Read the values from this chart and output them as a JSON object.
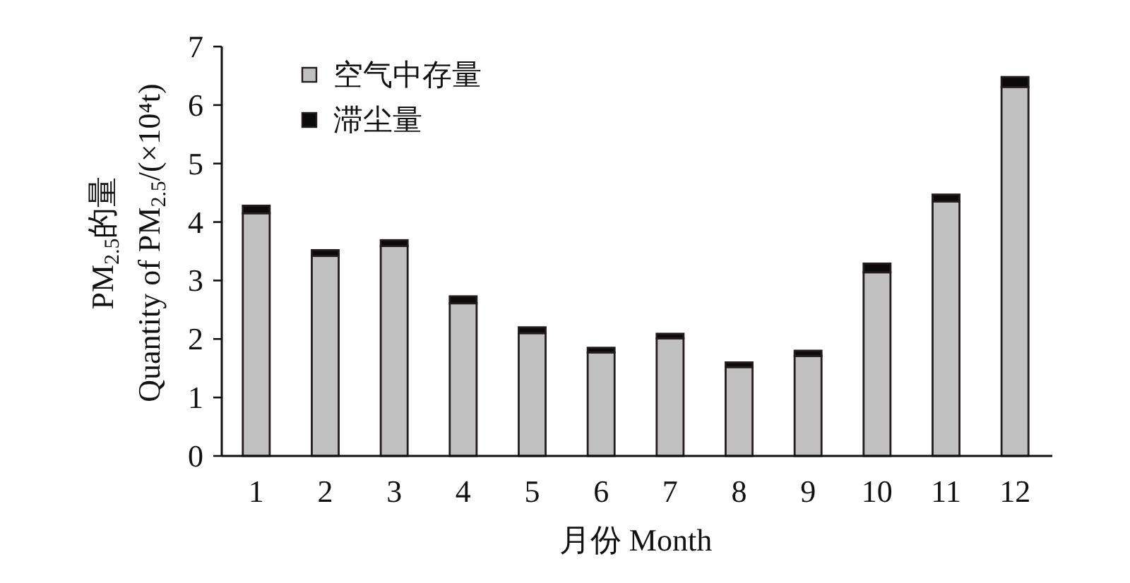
{
  "chart_data": {
    "type": "bar",
    "stacked": true,
    "xlabel": "月份 Month",
    "ylabel": "PM$_{2.5}$的量\nQuantity of PM$_{2.5}$/(×10⁴t)",
    "categories": [
      "1",
      "2",
      "3",
      "4",
      "5",
      "6",
      "7",
      "8",
      "9",
      "10",
      "11",
      "12"
    ],
    "series": [
      {
        "name": "空气中存量",
        "color": "#c0c0c0",
        "values": [
          4.15,
          3.42,
          3.59,
          2.61,
          2.1,
          1.77,
          2.01,
          1.52,
          1.71,
          3.14,
          4.35,
          6.31
        ]
      },
      {
        "name": "滞尘量",
        "color": "#0a0a0a",
        "values": [
          0.13,
          0.1,
          0.1,
          0.12,
          0.1,
          0.08,
          0.08,
          0.08,
          0.09,
          0.15,
          0.12,
          0.17
        ]
      }
    ],
    "ylim": [
      0,
      7
    ],
    "yticks": [
      0,
      1,
      2,
      3,
      4,
      5,
      6,
      7
    ],
    "legend": "top left"
  }
}
